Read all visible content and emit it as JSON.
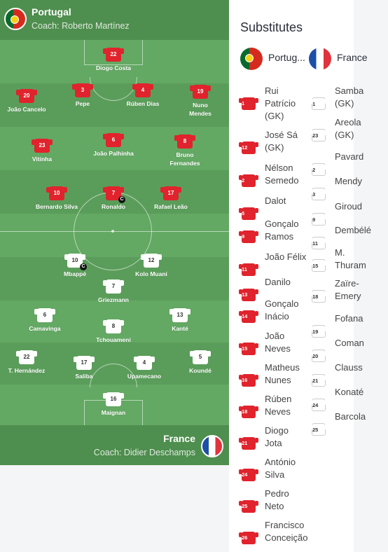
{
  "portugal": {
    "name": "Portugal",
    "coach": "Coach: Roberto Martínez"
  },
  "france": {
    "name": "France",
    "coach": "Coach: Didier Deschamps"
  },
  "pt_players": [
    {
      "num": "22",
      "name": "Diogo Costa"
    },
    {
      "num": "20",
      "name": "João Cancelo"
    },
    {
      "num": "3",
      "name": "Pepe"
    },
    {
      "num": "4",
      "name": "Rúben Dias"
    },
    {
      "num": "19",
      "name": "Nuno Mendes"
    },
    {
      "num": "23",
      "name": "Vitinha"
    },
    {
      "num": "6",
      "name": "João Palhinha"
    },
    {
      "num": "8",
      "name": "Bruno Fernandes"
    },
    {
      "num": "10",
      "name": "Bernardo Silva"
    },
    {
      "num": "7",
      "name": "Ronaldo",
      "captain": "C"
    },
    {
      "num": "17",
      "name": "Rafael Leão"
    }
  ],
  "fr_players": [
    {
      "num": "10",
      "name": "Mbappé",
      "captain": "C"
    },
    {
      "num": "12",
      "name": "Kolo Muani"
    },
    {
      "num": "7",
      "name": "Griezmann"
    },
    {
      "num": "6",
      "name": "Camavinga"
    },
    {
      "num": "8",
      "name": "Tchouameni"
    },
    {
      "num": "13",
      "name": "Kanté"
    },
    {
      "num": "22",
      "name": "T. Hernández"
    },
    {
      "num": "17",
      "name": "Saliba"
    },
    {
      "num": "4",
      "name": "Upamecano"
    },
    {
      "num": "5",
      "name": "Koundé"
    },
    {
      "num": "16",
      "name": "Maignan"
    }
  ],
  "subs": {
    "title": "Substitutes",
    "pt_label": "Portug...",
    "fr_label": "France",
    "pt": [
      {
        "num": "1",
        "name": "Rui Patrício (GK)"
      },
      {
        "num": "12",
        "name": "José Sá (GK)"
      },
      {
        "num": "2",
        "name": "Nélson Semedo"
      },
      {
        "num": "5",
        "name": "Dalot"
      },
      {
        "num": "9",
        "name": "Gonçalo Ramos"
      },
      {
        "num": "11",
        "name": "João Félix"
      },
      {
        "num": "13",
        "name": "Danilo"
      },
      {
        "num": "14",
        "name": "Gonçalo Inácio"
      },
      {
        "num": "15",
        "name": "João Neves"
      },
      {
        "num": "16",
        "name": "Matheus Nunes"
      },
      {
        "num": "18",
        "name": "Rúben Neves"
      },
      {
        "num": "21",
        "name": "Diogo Jota"
      },
      {
        "num": "24",
        "name": "António Silva"
      },
      {
        "num": "25",
        "name": "Pedro Neto"
      },
      {
        "num": "26",
        "name": "Francisco Conceição"
      }
    ],
    "fr": [
      {
        "num": "1",
        "name": "Samba (GK)"
      },
      {
        "num": "23",
        "name": "Areola (GK)"
      },
      {
        "num": "2",
        "name": "Pavard"
      },
      {
        "num": "3",
        "name": "Mendy"
      },
      {
        "num": "9",
        "name": "Giroud"
      },
      {
        "num": "11",
        "name": "Dembélé"
      },
      {
        "num": "15",
        "name": "M. Thuram"
      },
      {
        "num": "18",
        "name": "Zaïre-Emery"
      },
      {
        "num": "19",
        "name": "Fofana"
      },
      {
        "num": "20",
        "name": "Coman"
      },
      {
        "num": "21",
        "name": "Clauss"
      },
      {
        "num": "24",
        "name": "Konaté"
      },
      {
        "num": "25",
        "name": "Barcola"
      }
    ]
  },
  "colors": {
    "portugal_shirt": "#e0232c",
    "france_shirt": "#ffffff",
    "pitch": "#5fa25f"
  }
}
